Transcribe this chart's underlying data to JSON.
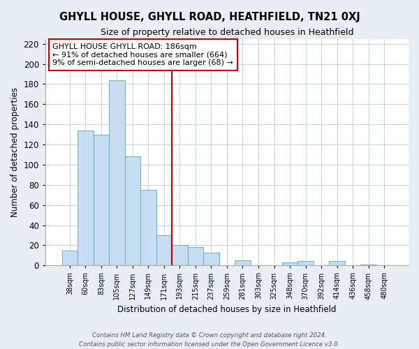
{
  "title": "GHYLL HOUSE, GHYLL ROAD, HEATHFIELD, TN21 0XJ",
  "subtitle": "Size of property relative to detached houses in Heathfield",
  "xlabel": "Distribution of detached houses by size in Heathfield",
  "ylabel": "Number of detached properties",
  "bar_labels": [
    "38sqm",
    "60sqm",
    "83sqm",
    "105sqm",
    "127sqm",
    "149sqm",
    "171sqm",
    "193sqm",
    "215sqm",
    "237sqm",
    "259sqm",
    "281sqm",
    "303sqm",
    "325sqm",
    "348sqm",
    "370sqm",
    "392sqm",
    "414sqm",
    "436sqm",
    "458sqm",
    "480sqm"
  ],
  "bar_values": [
    15,
    134,
    130,
    184,
    108,
    75,
    30,
    20,
    18,
    13,
    0,
    5,
    0,
    0,
    3,
    4,
    0,
    4,
    0,
    1,
    0
  ],
  "bar_color": "#c6dff0",
  "bar_edge_color": "#7aafd4",
  "bar_color_highlight": "#cc0000",
  "vline_x_index": 7,
  "annotation_title": "GHYLL HOUSE GHYLL ROAD: 186sqm",
  "annotation_line1": "← 91% of detached houses are smaller (664)",
  "annotation_line2": "9% of semi-detached houses are larger (68) →",
  "ylim": [
    0,
    225
  ],
  "yticks": [
    0,
    20,
    40,
    60,
    80,
    100,
    120,
    140,
    160,
    180,
    200,
    220
  ],
  "footer1": "Contains HM Land Registry data © Crown copyright and database right 2024.",
  "footer2": "Contains public sector information licensed under the Open Government Licence v3.0.",
  "bg_color": "#e8eef4",
  "plot_bg_color": "#ffffff",
  "grid_color": "#c8d4dc"
}
